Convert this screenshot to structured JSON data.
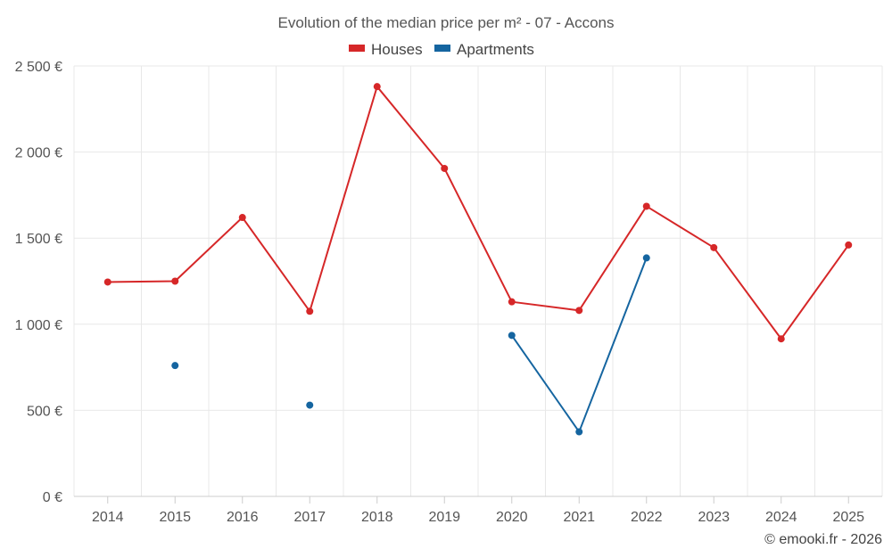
{
  "chart_data": {
    "type": "line",
    "title": "Evolution of the median price per m² - 07 - Accons",
    "categories": [
      "2014",
      "2015",
      "2016",
      "2017",
      "2018",
      "2019",
      "2020",
      "2021",
      "2022",
      "2023",
      "2024",
      "2025"
    ],
    "y_ticks": [
      "0 €",
      "500 €",
      "1 000 €",
      "1 500 €",
      "2 000 €",
      "2 500 €"
    ],
    "y_tick_values": [
      0,
      500,
      1000,
      1500,
      2000,
      2500
    ],
    "ylim": [
      0,
      2500
    ],
    "xlabel": "",
    "ylabel": "",
    "grid": true,
    "legend_position": "top-center",
    "series": [
      {
        "name": "Houses",
        "color": "#d62728",
        "values": [
          1245,
          1250,
          1620,
          1075,
          2380,
          1905,
          1130,
          1080,
          1685,
          1445,
          915,
          1460
        ]
      },
      {
        "name": "Apartments",
        "color": "#1565a0",
        "values": [
          null,
          760,
          null,
          530,
          null,
          null,
          935,
          375,
          1385,
          null,
          null,
          null
        ]
      }
    ]
  },
  "credit": "© emooki.fr - 2026"
}
